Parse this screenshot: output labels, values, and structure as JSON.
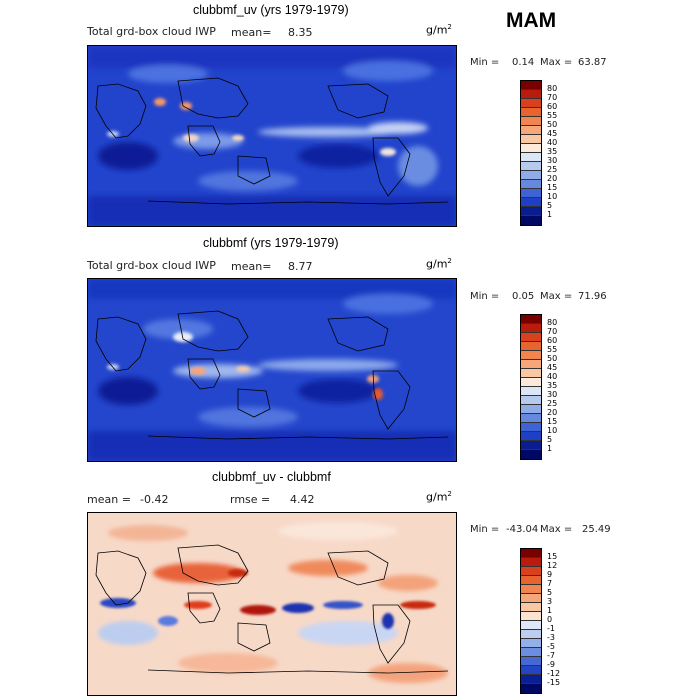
{
  "season": "MAM",
  "unit_base": "g/m",
  "unit_sup": "2",
  "panels": [
    {
      "title": "clubbmf_uv (yrs 1979-1979)",
      "variable": "Total grd-box cloud IWP",
      "mean_label": "mean=",
      "mean_value": "8.35",
      "min_label": "Min =",
      "min_value": "0.14",
      "max_label": "Max =",
      "max_value": "63.87"
    },
    {
      "title": "clubbmf (yrs 1979-1979)",
      "variable": "Total grd-box cloud IWP",
      "mean_label": "mean=",
      "mean_value": "8.77",
      "min_label": "Min =",
      "min_value": "0.05",
      "max_label": "Max =",
      "max_value": "71.96"
    },
    {
      "title": "clubbmf_uv - clubbmf",
      "mean_label": "mean =",
      "mean_value": "-0.42",
      "rmse_label": "rmse =",
      "rmse_value": "4.42",
      "min_label": "Min =",
      "min_value": "-43.04",
      "max_label": "Max =",
      "max_value": "25.49"
    }
  ],
  "chart_data": [
    {
      "type": "heatmap",
      "title": "clubbmf_uv (yrs 1979-1979)",
      "field": "Total grd-box cloud IWP",
      "units": "g/m2",
      "mean": 8.35,
      "min": 0.14,
      "max": 63.87,
      "colorbar_levels": [
        1,
        5,
        10,
        15,
        20,
        25,
        30,
        35,
        40,
        45,
        50,
        55,
        60,
        70,
        80
      ]
    },
    {
      "type": "heatmap",
      "title": "clubbmf (yrs 1979-1979)",
      "field": "Total grd-box cloud IWP",
      "units": "g/m2",
      "mean": 8.77,
      "min": 0.05,
      "max": 71.96,
      "colorbar_levels": [
        1,
        5,
        10,
        15,
        20,
        25,
        30,
        35,
        40,
        45,
        50,
        55,
        60,
        70,
        80
      ]
    },
    {
      "type": "heatmap",
      "title": "clubbmf_uv - clubbmf",
      "units": "g/m2",
      "mean": -0.42,
      "rmse": 4.42,
      "min": -43.04,
      "max": 25.49,
      "colorbar_levels": [
        -15,
        -12,
        -9,
        -7,
        -5,
        -3,
        -1,
        0,
        1,
        3,
        5,
        7,
        9,
        12,
        15
      ]
    }
  ],
  "colorbars": {
    "abs_labels": [
      "80",
      "70",
      "60",
      "55",
      "50",
      "45",
      "40",
      "35",
      "30",
      "25",
      "20",
      "15",
      "10",
      "5",
      "1"
    ],
    "abs_colors": [
      "#7a0000",
      "#b71c0c",
      "#d8401e",
      "#e8642e",
      "#f08550",
      "#f6a77a",
      "#fac7a5",
      "#fde9d9",
      "#dde6f6",
      "#b6c9ef",
      "#8fabe8",
      "#6688de",
      "#3f63d6",
      "#1f3fc4",
      "#0a1d8f",
      "#000866"
    ],
    "diff_labels": [
      "15",
      "12",
      "9",
      "7",
      "5",
      "3",
      "1",
      "0",
      "-1",
      "-3",
      "-5",
      "-7",
      "-9",
      "-12",
      "-15"
    ],
    "diff_colors": [
      "#7a0000",
      "#b71c0c",
      "#d8401e",
      "#e8642e",
      "#f08550",
      "#f6a77a",
      "#fac7a5",
      "#fde4d2",
      "#dfe8f8",
      "#bccdf0",
      "#95b0e9",
      "#6d8ee0",
      "#4468d6",
      "#2444c2",
      "#0b1f94",
      "#000866"
    ]
  }
}
